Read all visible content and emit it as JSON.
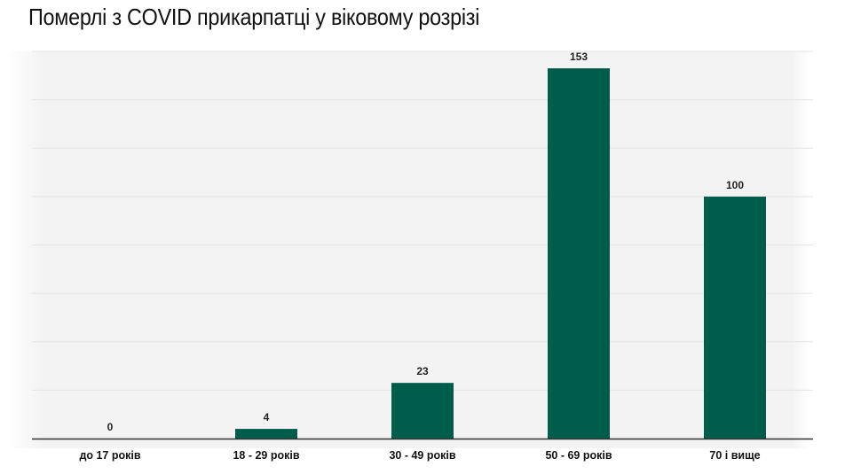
{
  "chart_data": {
    "type": "bar",
    "title": "Померлі з COVID прикарпатці у віковому розрізі",
    "categories": [
      "до 17 років",
      "18 - 29 років",
      "30 - 49 років",
      "50 - 69 років",
      "70 і вище"
    ],
    "values": [
      0,
      4,
      23,
      153,
      100
    ],
    "ylim": [
      0,
      160
    ],
    "gridlines": true,
    "data_labels": true,
    "bar_color": "#005c4b",
    "axis_color": "#333333",
    "grid_color": "#e4e4e4",
    "xlabel": "",
    "ylabel": ""
  }
}
